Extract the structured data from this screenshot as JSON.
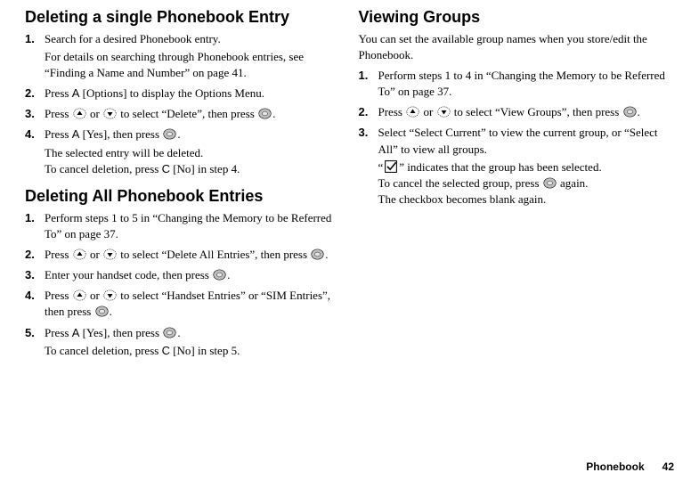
{
  "left": {
    "section1": {
      "heading": "Deleting a single Phonebook Entry",
      "steps": [
        {
          "num": "1.",
          "body": "Search for a desired Phonebook entry.",
          "sub": "For details on searching through Phonebook entries, see “Finding a Name and Number” on page 41."
        },
        {
          "num": "2.",
          "segments": [
            {
              "t": "text",
              "v": "Press "
            },
            {
              "t": "letter",
              "v": "A"
            },
            {
              "t": "text",
              "v": " [Options] to display the Options Menu."
            }
          ]
        },
        {
          "num": "3.",
          "segments": [
            {
              "t": "text",
              "v": "Press "
            },
            {
              "t": "icon",
              "v": "up"
            },
            {
              "t": "text",
              "v": " or "
            },
            {
              "t": "icon",
              "v": "down"
            },
            {
              "t": "text",
              "v": " to select “Delete”, then press "
            },
            {
              "t": "icon",
              "v": "circle"
            },
            {
              "t": "text",
              "v": "."
            }
          ]
        },
        {
          "num": "4.",
          "segments": [
            {
              "t": "text",
              "v": "Press "
            },
            {
              "t": "letter",
              "v": "A"
            },
            {
              "t": "text",
              "v": " [Yes], then press "
            },
            {
              "t": "icon",
              "v": "circle"
            },
            {
              "t": "text",
              "v": "."
            }
          ],
          "sub_segments": [
            {
              "t": "text",
              "v": "The selected entry will be deleted."
            },
            {
              "t": "br"
            },
            {
              "t": "text",
              "v": "To cancel deletion, press "
            },
            {
              "t": "letter",
              "v": "C"
            },
            {
              "t": "text",
              "v": " [No] in step 4."
            }
          ]
        }
      ]
    },
    "section2": {
      "heading": "Deleting All Phonebook Entries",
      "steps": [
        {
          "num": "1.",
          "body": "Perform steps 1 to 5 in “Changing the Memory to be Referred To” on page 37."
        },
        {
          "num": "2.",
          "segments": [
            {
              "t": "text",
              "v": "Press "
            },
            {
              "t": "icon",
              "v": "up"
            },
            {
              "t": "text",
              "v": " or "
            },
            {
              "t": "icon",
              "v": "down"
            },
            {
              "t": "text",
              "v": " to select “Delete All Entries”, then press "
            },
            {
              "t": "icon",
              "v": "circle"
            },
            {
              "t": "text",
              "v": "."
            }
          ]
        },
        {
          "num": "3.",
          "segments": [
            {
              "t": "text",
              "v": "Enter your handset code, then press "
            },
            {
              "t": "icon",
              "v": "circle"
            },
            {
              "t": "text",
              "v": "."
            }
          ]
        },
        {
          "num": "4.",
          "segments": [
            {
              "t": "text",
              "v": "Press "
            },
            {
              "t": "icon",
              "v": "up"
            },
            {
              "t": "text",
              "v": " or "
            },
            {
              "t": "icon",
              "v": "down"
            },
            {
              "t": "text",
              "v": " to select “Handset Entries” or “SIM Entries”, then press "
            },
            {
              "t": "icon",
              "v": "circle"
            },
            {
              "t": "text",
              "v": "."
            }
          ]
        },
        {
          "num": "5.",
          "segments": [
            {
              "t": "text",
              "v": "Press "
            },
            {
              "t": "letter",
              "v": "A"
            },
            {
              "t": "text",
              "v": " [Yes], then press "
            },
            {
              "t": "icon",
              "v": "circle"
            },
            {
              "t": "text",
              "v": "."
            }
          ],
          "sub_segments": [
            {
              "t": "text",
              "v": "To cancel deletion, press "
            },
            {
              "t": "letter",
              "v": "C"
            },
            {
              "t": "text",
              "v": " [No] in step 5."
            }
          ]
        }
      ]
    }
  },
  "right": {
    "section1": {
      "heading": "Viewing Groups",
      "intro": "You can set the available group names when you store/edit the Phonebook.",
      "steps": [
        {
          "num": "1.",
          "body": "Perform steps 1 to 4 in “Changing the Memory to be Referred To” on page 37."
        },
        {
          "num": "2.",
          "segments": [
            {
              "t": "text",
              "v": "Press "
            },
            {
              "t": "icon",
              "v": "up"
            },
            {
              "t": "text",
              "v": " or "
            },
            {
              "t": "icon",
              "v": "down"
            },
            {
              "t": "text",
              "v": " to select “View Groups”, then press "
            },
            {
              "t": "icon",
              "v": "circle"
            },
            {
              "t": "text",
              "v": "."
            }
          ]
        },
        {
          "num": "3.",
          "body": "Select “Select Current” to view the current group, or “Select All” to view all groups.",
          "sub_segments": [
            {
              "t": "text",
              "v": "“"
            },
            {
              "t": "icon",
              "v": "checkbox"
            },
            {
              "t": "text",
              "v": "” indicates that the group has been selected."
            },
            {
              "t": "br"
            },
            {
              "t": "text",
              "v": "To cancel the selected group, press "
            },
            {
              "t": "icon",
              "v": "circle"
            },
            {
              "t": "text",
              "v": " again."
            },
            {
              "t": "br"
            },
            {
              "t": "text",
              "v": "The checkbox becomes blank again."
            }
          ]
        }
      ]
    }
  },
  "footer": {
    "label": "Phonebook",
    "page": "42"
  },
  "icons": {
    "stroke": "#000000",
    "fill_light": "#ffffff",
    "arrow_size": 15,
    "circle_size": 15,
    "checkbox_size": 16
  }
}
